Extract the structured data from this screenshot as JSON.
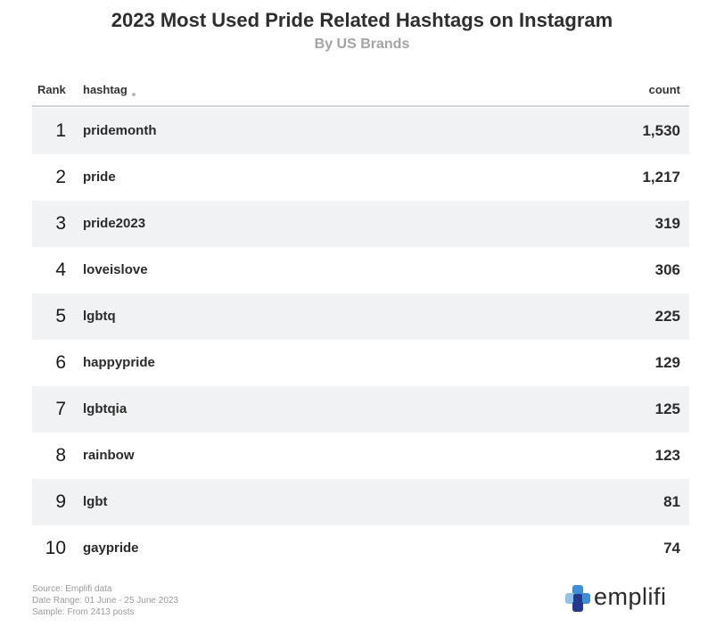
{
  "title": "2023 Most Used Pride Related Hashtags on Instagram",
  "subtitle": "By US Brands",
  "table": {
    "headers": {
      "rank": "Rank",
      "hashtag": "hashtag",
      "count": "count"
    }
  },
  "chart_data": {
    "type": "table",
    "title": "2023 Most Used Pride Related Hashtags on Instagram",
    "subtitle": "By US Brands",
    "columns": [
      "Rank",
      "hashtag",
      "count"
    ],
    "rows": [
      {
        "rank": "1",
        "hashtag": "pridemonth",
        "count": "1,530"
      },
      {
        "rank": "2",
        "hashtag": "pride",
        "count": "1,217"
      },
      {
        "rank": "3",
        "hashtag": "pride2023",
        "count": "319"
      },
      {
        "rank": "4",
        "hashtag": "loveislove",
        "count": "306"
      },
      {
        "rank": "5",
        "hashtag": "lgbtq",
        "count": "225"
      },
      {
        "rank": "6",
        "hashtag": "happypride",
        "count": "129"
      },
      {
        "rank": "7",
        "hashtag": "lgbtqia",
        "count": "125"
      },
      {
        "rank": "8",
        "hashtag": "rainbow",
        "count": "123"
      },
      {
        "rank": "9",
        "hashtag": "lgbt",
        "count": "81"
      },
      {
        "rank": "10",
        "hashtag": "gaypride",
        "count": "74"
      }
    ]
  },
  "footer": {
    "source": "Source: Emplifi data",
    "date_range": "Date Range: 01 June - 25 June 2023",
    "sample": "Sample: From 2413 posts"
  },
  "logo": {
    "name": "emplifi",
    "icon": "emplifi-logo-icon",
    "colors": {
      "blue": "#3b8fd9",
      "navy": "#233a8c",
      "light": "#8fc3ea"
    }
  },
  "colors": {
    "row_alt": "#f1f2f4",
    "header_rule": "#cfd3d8",
    "subtitle": "#a3a3a3"
  }
}
